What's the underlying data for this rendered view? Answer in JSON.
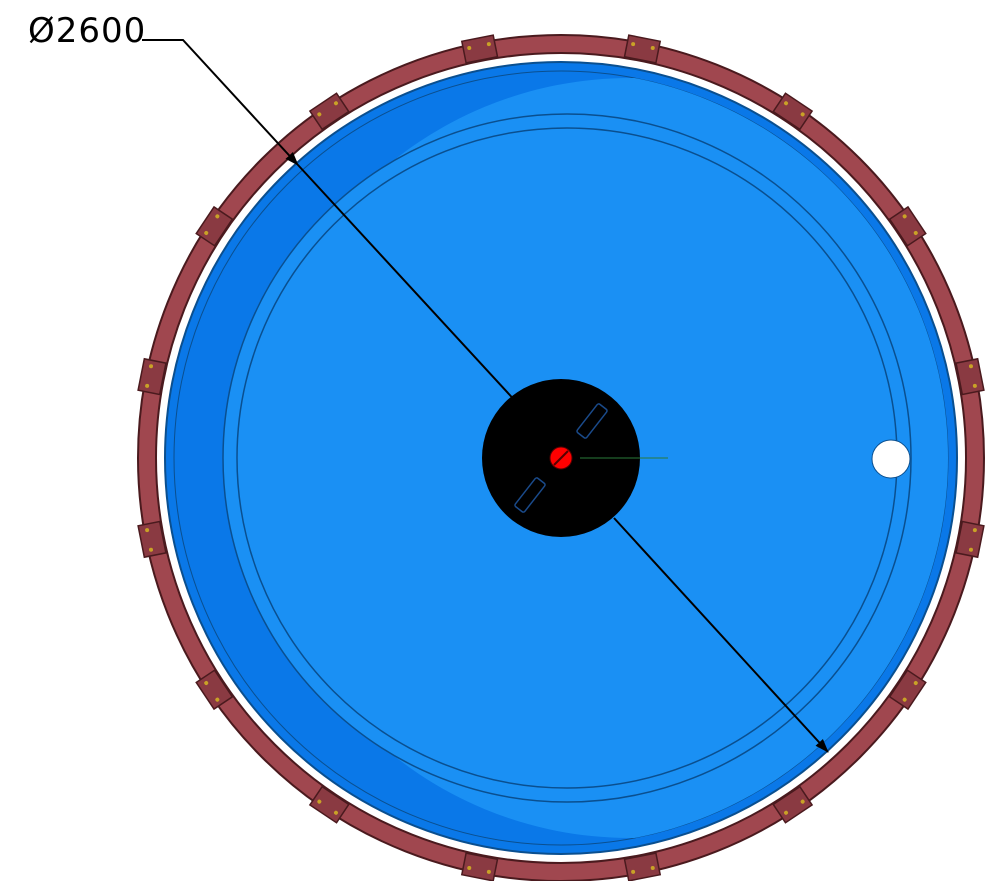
{
  "dimension": {
    "symbol": "Ø",
    "value": "2600"
  },
  "colors": {
    "background": "#ffffff",
    "outer_ring": "#a0474f",
    "outer_ring_stroke": "#4a1a1e",
    "tank_dark": "#0a78e8",
    "tank_light": "#1a90f4",
    "outline": "#0a4f8f",
    "hub": "#000000",
    "center_pin": "#ff0000",
    "port": "#ffffff",
    "dimension_line": "#000000",
    "bolt": "#c9a227"
  },
  "icons": {
    "dimension_arrow": "arrowhead"
  }
}
